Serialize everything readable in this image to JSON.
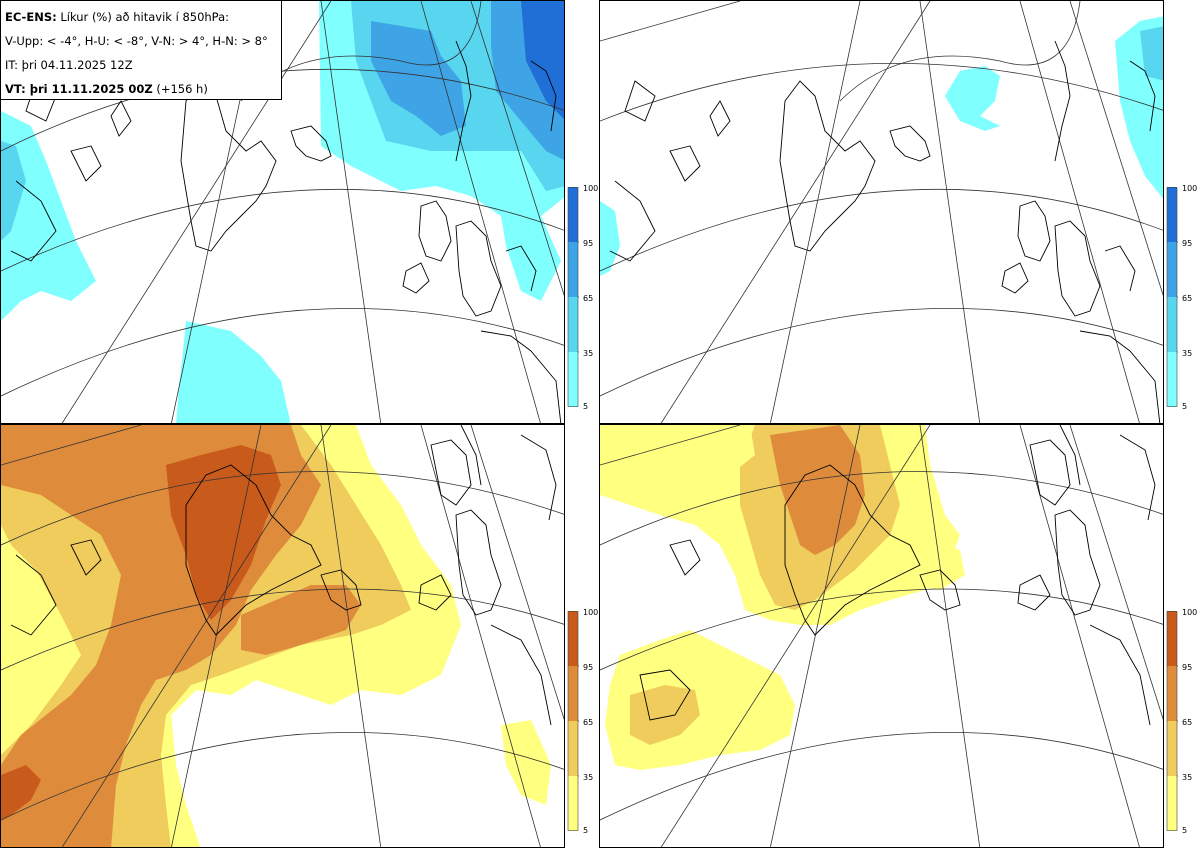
{
  "legend": {
    "product": "EC-ENS:",
    "description": "Líkur (%) að hitavik í 850hPa:",
    "categories": "V-Upp: < -4°, H-U: < -8°, V-N: > 4°, H-N: > 8°",
    "initial_time": "IT: þri 04.11.2025 12Z",
    "valid_label": "VT: þri 11.11.2025 00Z",
    "lead_time": "(+156 h)"
  },
  "colorbar": {
    "ticks": [
      "100",
      "95",
      "65",
      "35",
      "5"
    ],
    "cold_colors": [
      "#80ffff",
      "#58d6f0",
      "#3ea4e6",
      "#1f6fd6"
    ],
    "warm_colors": [
      "#ffff80",
      "#f0cc5c",
      "#de8c3c",
      "#c85a1c"
    ]
  },
  "panels": [
    {
      "id": "top-left",
      "field": "cold"
    },
    {
      "id": "top-right",
      "field": "cold"
    },
    {
      "id": "bottom-left",
      "field": "warm"
    },
    {
      "id": "bottom-right",
      "field": "warm"
    }
  ]
}
